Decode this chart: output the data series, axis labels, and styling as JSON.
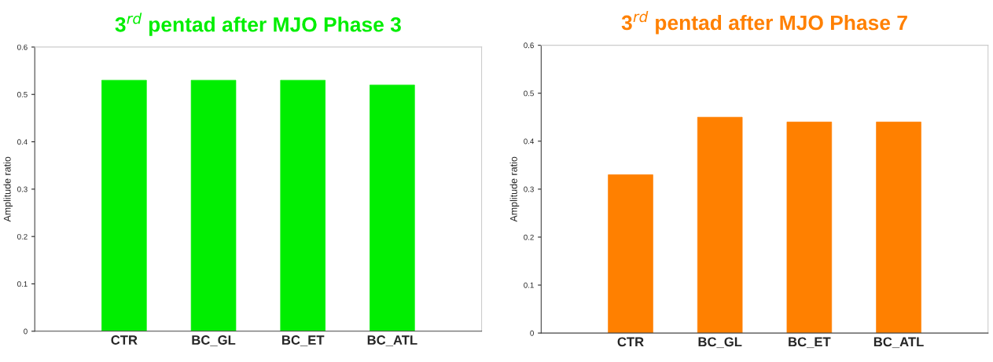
{
  "chart_data": [
    {
      "type": "bar",
      "title": "3$^{rd}$ pentad after MJO Phase 3",
      "ylabel": "Amplitude ratio",
      "categories": [
        "CTR",
        "BC_GL",
        "BC_ET",
        "BC_ATL"
      ],
      "values": [
        0.53,
        0.53,
        0.53,
        0.52
      ],
      "color": "#00ee00",
      "ylim": [
        0,
        0.6
      ],
      "yticks": [
        0,
        0.1,
        0.2,
        0.3,
        0.4,
        0.5,
        0.6
      ],
      "grid": false
    },
    {
      "type": "bar",
      "title": "3$^{rd}$ pentad after MJO Phase 7",
      "ylabel": "Amplitude ratio",
      "categories": [
        "CTR",
        "BC_GL",
        "BC_ET",
        "BC_ATL"
      ],
      "values": [
        0.33,
        0.45,
        0.44,
        0.44
      ],
      "color": "#ff8000",
      "ylim": [
        0,
        0.6
      ],
      "yticks": [
        0,
        0.1,
        0.2,
        0.3,
        0.4,
        0.5,
        0.6
      ],
      "grid": false
    }
  ]
}
